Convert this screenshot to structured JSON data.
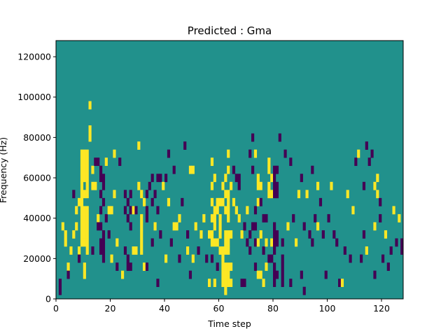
{
  "chart_data": {
    "type": "heatmap",
    "title": "Predicted : Gma",
    "xlabel": "Time step",
    "ylabel": "Frequency (Hz)",
    "xlim": [
      0,
      128
    ],
    "ylim": [
      0,
      128000
    ],
    "x_ticks": [
      0,
      20,
      40,
      60,
      80,
      100,
      120
    ],
    "y_ticks": [
      0,
      20000,
      40000,
      60000,
      80000,
      100000,
      120000
    ],
    "x_tick_labels": [
      "0",
      "20",
      "40",
      "60",
      "80",
      "100",
      "120"
    ],
    "y_tick_labels": [
      "0",
      "20000",
      "40000",
      "60000",
      "80000",
      "100000",
      "120000"
    ],
    "colormap": "viridis",
    "value_levels": [
      -1,
      0,
      1
    ],
    "colors": {
      "-1": "#440154",
      "0": "#21918c",
      "1": "#fde725"
    },
    "background_value": 0,
    "cell_height_hz": 4000,
    "cells": [
      [
        1,
        2000,
        -1
      ],
      [
        1,
        6000,
        -1
      ],
      [
        2,
        34000,
        1
      ],
      [
        3,
        30000,
        1
      ],
      [
        3,
        26000,
        1
      ],
      [
        4,
        14000,
        1
      ],
      [
        4,
        10000,
        -1
      ],
      [
        5,
        22000,
        1
      ],
      [
        6,
        50000,
        -1
      ],
      [
        6,
        30000,
        1
      ],
      [
        7,
        42000,
        1
      ],
      [
        7,
        34000,
        1
      ],
      [
        8,
        46000,
        1
      ],
      [
        8,
        22000,
        1
      ],
      [
        8,
        18000,
        -1
      ],
      [
        9,
        70000,
        1
      ],
      [
        9,
        66000,
        1
      ],
      [
        9,
        62000,
        1
      ],
      [
        9,
        58000,
        1
      ],
      [
        9,
        54000,
        1
      ],
      [
        9,
        50000,
        1
      ],
      [
        9,
        46000,
        1
      ],
      [
        9,
        42000,
        1
      ],
      [
        9,
        38000,
        1
      ],
      [
        9,
        34000,
        1
      ],
      [
        9,
        30000,
        1
      ],
      [
        9,
        26000,
        1
      ],
      [
        10,
        70000,
        1
      ],
      [
        10,
        66000,
        1
      ],
      [
        10,
        62000,
        1
      ],
      [
        10,
        58000,
        1
      ],
      [
        10,
        50000,
        1
      ],
      [
        10,
        42000,
        1
      ],
      [
        10,
        38000,
        1
      ],
      [
        10,
        34000,
        1
      ],
      [
        10,
        30000,
        1
      ],
      [
        10,
        26000,
        1
      ],
      [
        11,
        70000,
        1
      ],
      [
        11,
        66000,
        1
      ],
      [
        11,
        62000,
        1
      ],
      [
        11,
        58000,
        1
      ],
      [
        11,
        54000,
        1
      ],
      [
        11,
        50000,
        1
      ],
      [
        11,
        42000,
        1
      ],
      [
        11,
        38000,
        1
      ],
      [
        11,
        34000,
        1
      ],
      [
        11,
        30000,
        1
      ],
      [
        11,
        26000,
        1
      ],
      [
        11,
        22000,
        1
      ],
      [
        10,
        14000,
        1
      ],
      [
        10,
        10000,
        1
      ],
      [
        12,
        94000,
        1
      ],
      [
        12,
        82000,
        1
      ],
      [
        12,
        78000,
        1
      ],
      [
        13,
        54000,
        1
      ],
      [
        13,
        62000,
        1
      ],
      [
        13,
        22000,
        -1
      ],
      [
        14,
        54000,
        1
      ],
      [
        14,
        66000,
        -1
      ],
      [
        15,
        66000,
        -1
      ],
      [
        15,
        38000,
        1
      ],
      [
        15,
        34000,
        -1
      ],
      [
        16,
        62000,
        -1
      ],
      [
        16,
        58000,
        -1
      ],
      [
        16,
        50000,
        -1
      ],
      [
        16,
        42000,
        -1
      ],
      [
        16,
        34000,
        -1
      ],
      [
        16,
        26000,
        -1
      ],
      [
        16,
        22000,
        -1
      ],
      [
        17,
        58000,
        -1
      ],
      [
        17,
        54000,
        -1
      ],
      [
        17,
        46000,
        -1
      ],
      [
        17,
        30000,
        -1
      ],
      [
        17,
        26000,
        -1
      ],
      [
        17,
        22000,
        -1
      ],
      [
        17,
        18000,
        -1
      ],
      [
        18,
        66000,
        1
      ],
      [
        18,
        38000,
        -1
      ],
      [
        19,
        42000,
        1
      ],
      [
        19,
        30000,
        -1
      ],
      [
        20,
        42000,
        1
      ],
      [
        20,
        18000,
        1
      ],
      [
        21,
        50000,
        1
      ],
      [
        21,
        70000,
        1
      ],
      [
        22,
        26000,
        1
      ],
      [
        22,
        14000,
        -1
      ],
      [
        23,
        66000,
        -1
      ],
      [
        24,
        10000,
        1
      ],
      [
        25,
        50000,
        -1
      ],
      [
        25,
        42000,
        -1
      ],
      [
        25,
        22000,
        -1
      ],
      [
        26,
        46000,
        -1
      ],
      [
        26,
        38000,
        -1
      ],
      [
        26,
        18000,
        -1
      ],
      [
        26,
        14000,
        -1
      ],
      [
        27,
        50000,
        -1
      ],
      [
        27,
        42000,
        -1
      ],
      [
        27,
        34000,
        -1
      ],
      [
        27,
        14000,
        -1
      ],
      [
        28,
        42000,
        1
      ],
      [
        28,
        22000,
        1
      ],
      [
        29,
        42000,
        -1
      ],
      [
        29,
        22000,
        1
      ],
      [
        30,
        74000,
        1
      ],
      [
        30,
        54000,
        1
      ],
      [
        31,
        50000,
        1
      ],
      [
        31,
        38000,
        1
      ],
      [
        31,
        34000,
        1
      ],
      [
        31,
        30000,
        1
      ],
      [
        31,
        26000,
        1
      ],
      [
        31,
        22000,
        1
      ],
      [
        32,
        46000,
        1
      ],
      [
        32,
        14000,
        1
      ],
      [
        33,
        50000,
        -1
      ],
      [
        33,
        42000,
        -1
      ],
      [
        33,
        38000,
        -1
      ],
      [
        33,
        14000,
        -1
      ],
      [
        34,
        54000,
        -1
      ],
      [
        35,
        58000,
        -1
      ],
      [
        35,
        46000,
        -1
      ],
      [
        35,
        26000,
        -1
      ],
      [
        36,
        50000,
        -1
      ],
      [
        36,
        34000,
        1
      ],
      [
        37,
        58000,
        -1
      ],
      [
        37,
        42000,
        -1
      ],
      [
        37,
        6000,
        -1
      ],
      [
        38,
        58000,
        -1
      ],
      [
        38,
        30000,
        -1
      ],
      [
        39,
        54000,
        1
      ],
      [
        40,
        58000,
        -1
      ],
      [
        40,
        18000,
        1
      ],
      [
        41,
        70000,
        -1
      ],
      [
        41,
        46000,
        1
      ],
      [
        42,
        26000,
        -1
      ],
      [
        43,
        62000,
        -1
      ],
      [
        43,
        34000,
        1
      ],
      [
        44,
        34000,
        1
      ],
      [
        45,
        38000,
        1
      ],
      [
        45,
        18000,
        -1
      ],
      [
        46,
        46000,
        -1
      ],
      [
        47,
        74000,
        -1
      ],
      [
        48,
        30000,
        -1
      ],
      [
        48,
        22000,
        1
      ],
      [
        49,
        62000,
        1
      ],
      [
        49,
        10000,
        -1
      ],
      [
        50,
        62000,
        1
      ],
      [
        50,
        18000,
        1
      ],
      [
        51,
        34000,
        1
      ],
      [
        52,
        22000,
        -1
      ],
      [
        53,
        30000,
        1
      ],
      [
        54,
        38000,
        1
      ],
      [
        55,
        18000,
        -1
      ],
      [
        56,
        30000,
        1
      ],
      [
        56,
        6000,
        1
      ],
      [
        57,
        66000,
        1
      ],
      [
        57,
        54000,
        1
      ],
      [
        57,
        46000,
        1
      ],
      [
        57,
        38000,
        1
      ],
      [
        57,
        30000,
        1
      ],
      [
        57,
        26000,
        1
      ],
      [
        57,
        18000,
        -1
      ],
      [
        58,
        58000,
        1
      ],
      [
        58,
        42000,
        1
      ],
      [
        58,
        38000,
        1
      ],
      [
        58,
        34000,
        1
      ],
      [
        58,
        26000,
        1
      ],
      [
        58,
        6000,
        1
      ],
      [
        59,
        46000,
        1
      ],
      [
        59,
        42000,
        1
      ],
      [
        59,
        26000,
        1
      ],
      [
        59,
        14000,
        -1
      ],
      [
        60,
        46000,
        1
      ],
      [
        60,
        38000,
        1
      ],
      [
        60,
        34000,
        1
      ],
      [
        60,
        30000,
        1
      ],
      [
        60,
        22000,
        1
      ],
      [
        61,
        54000,
        1
      ],
      [
        61,
        46000,
        1
      ],
      [
        61,
        22000,
        1
      ],
      [
        61,
        18000,
        1
      ],
      [
        61,
        14000,
        1
      ],
      [
        61,
        10000,
        1
      ],
      [
        61,
        6000,
        1
      ],
      [
        62,
        58000,
        1
      ],
      [
        62,
        50000,
        1
      ],
      [
        62,
        42000,
        1
      ],
      [
        62,
        30000,
        1
      ],
      [
        62,
        26000,
        1
      ],
      [
        62,
        22000,
        1
      ],
      [
        62,
        14000,
        1
      ],
      [
        62,
        10000,
        1
      ],
      [
        62,
        6000,
        1
      ],
      [
        62,
        2000,
        1
      ],
      [
        63,
        70000,
        1
      ],
      [
        63,
        62000,
        1
      ],
      [
        63,
        50000,
        1
      ],
      [
        63,
        46000,
        1
      ],
      [
        63,
        42000,
        1
      ],
      [
        63,
        38000,
        1
      ],
      [
        63,
        30000,
        1
      ],
      [
        63,
        26000,
        1
      ],
      [
        63,
        22000,
        1
      ],
      [
        63,
        14000,
        1
      ],
      [
        63,
        10000,
        1
      ],
      [
        63,
        6000,
        1
      ],
      [
        64,
        54000,
        1
      ],
      [
        64,
        30000,
        1
      ],
      [
        64,
        14000,
        1
      ],
      [
        64,
        6000,
        1
      ],
      [
        65,
        62000,
        -1
      ],
      [
        65,
        46000,
        1
      ],
      [
        66,
        58000,
        -1
      ],
      [
        66,
        42000,
        1
      ],
      [
        67,
        58000,
        -1
      ],
      [
        67,
        54000,
        -1
      ],
      [
        67,
        38000,
        1
      ],
      [
        68,
        30000,
        1
      ],
      [
        68,
        6000,
        -1
      ],
      [
        69,
        34000,
        -1
      ],
      [
        69,
        6000,
        -1
      ],
      [
        70,
        42000,
        1
      ],
      [
        70,
        26000,
        -1
      ],
      [
        71,
        70000,
        -1
      ],
      [
        71,
        30000,
        -1
      ],
      [
        71,
        22000,
        -1
      ],
      [
        72,
        78000,
        -1
      ],
      [
        72,
        62000,
        -1
      ],
      [
        72,
        34000,
        -1
      ],
      [
        73,
        70000,
        1
      ],
      [
        73,
        42000,
        -1
      ],
      [
        73,
        34000,
        -1
      ],
      [
        73,
        26000,
        -1
      ],
      [
        73,
        14000,
        -1
      ],
      [
        74,
        58000,
        1
      ],
      [
        74,
        54000,
        1
      ],
      [
        74,
        46000,
        1
      ],
      [
        74,
        26000,
        1
      ],
      [
        74,
        10000,
        1
      ],
      [
        75,
        54000,
        1
      ],
      [
        75,
        46000,
        -1
      ],
      [
        75,
        30000,
        1
      ],
      [
        75,
        10000,
        1
      ],
      [
        76,
        38000,
        -1
      ],
      [
        76,
        22000,
        -1
      ],
      [
        76,
        6000,
        1
      ],
      [
        77,
        38000,
        -1
      ],
      [
        77,
        26000,
        1
      ],
      [
        77,
        14000,
        1
      ],
      [
        78,
        66000,
        1
      ],
      [
        78,
        62000,
        1
      ],
      [
        78,
        54000,
        1
      ],
      [
        78,
        50000,
        1
      ],
      [
        78,
        18000,
        -1
      ],
      [
        79,
        58000,
        1
      ],
      [
        79,
        50000,
        1
      ],
      [
        79,
        26000,
        1
      ],
      [
        79,
        18000,
        -1
      ],
      [
        80,
        62000,
        -1
      ],
      [
        80,
        58000,
        -1
      ],
      [
        80,
        54000,
        -1
      ],
      [
        80,
        50000,
        -1
      ],
      [
        80,
        34000,
        -1
      ],
      [
        80,
        30000,
        -1
      ],
      [
        80,
        26000,
        -1
      ],
      [
        80,
        22000,
        -1
      ],
      [
        80,
        14000,
        -1
      ],
      [
        80,
        10000,
        -1
      ],
      [
        80,
        6000,
        -1
      ],
      [
        81,
        62000,
        -1
      ],
      [
        81,
        54000,
        -1
      ],
      [
        81,
        50000,
        -1
      ],
      [
        81,
        30000,
        -1
      ],
      [
        81,
        26000,
        -1
      ],
      [
        81,
        10000,
        -1
      ],
      [
        82,
        78000,
        -1
      ],
      [
        83,
        26000,
        -1
      ],
      [
        83,
        18000,
        -1
      ],
      [
        83,
        14000,
        -1
      ],
      [
        83,
        10000,
        -1
      ],
      [
        83,
        6000,
        -1
      ],
      [
        84,
        70000,
        -1
      ],
      [
        85,
        34000,
        1
      ],
      [
        86,
        6000,
        -1
      ],
      [
        86,
        66000,
        -1
      ],
      [
        87,
        38000,
        -1
      ],
      [
        88,
        26000,
        1
      ],
      [
        89,
        50000,
        1
      ],
      [
        90,
        58000,
        -1
      ],
      [
        90,
        10000,
        -1
      ],
      [
        91,
        34000,
        -1
      ],
      [
        91,
        2000,
        -1
      ],
      [
        92,
        50000,
        1
      ],
      [
        93,
        30000,
        -1
      ],
      [
        94,
        26000,
        -1
      ],
      [
        94,
        62000,
        -1
      ],
      [
        95,
        38000,
        -1
      ],
      [
        96,
        34000,
        1
      ],
      [
        96,
        54000,
        1
      ],
      [
        97,
        46000,
        -1
      ],
      [
        98,
        30000,
        -1
      ],
      [
        99,
        10000,
        -1
      ],
      [
        100,
        38000,
        -1
      ],
      [
        101,
        54000,
        1
      ],
      [
        102,
        30000,
        -1
      ],
      [
        103,
        26000,
        -1
      ],
      [
        104,
        6000,
        -1
      ],
      [
        105,
        6000,
        1
      ],
      [
        106,
        22000,
        -1
      ],
      [
        107,
        50000,
        1
      ],
      [
        108,
        18000,
        -1
      ],
      [
        109,
        42000,
        1
      ],
      [
        110,
        66000,
        -1
      ],
      [
        111,
        70000,
        1
      ],
      [
        112,
        18000,
        -1
      ],
      [
        113,
        54000,
        -1
      ],
      [
        113,
        30000,
        -1
      ],
      [
        114,
        74000,
        -1
      ],
      [
        114,
        22000,
        1
      ],
      [
        115,
        66000,
        -1
      ],
      [
        116,
        70000,
        -1
      ],
      [
        117,
        54000,
        1
      ],
      [
        117,
        10000,
        -1
      ],
      [
        117,
        34000,
        1
      ],
      [
        118,
        50000,
        1
      ],
      [
        118,
        58000,
        1
      ],
      [
        119,
        38000,
        -1
      ],
      [
        119,
        46000,
        -1
      ],
      [
        120,
        18000,
        -1
      ],
      [
        121,
        30000,
        1
      ],
      [
        122,
        14000,
        -1
      ],
      [
        123,
        22000,
        -1
      ],
      [
        124,
        42000,
        1
      ],
      [
        125,
        26000,
        -1
      ],
      [
        126,
        38000,
        1
      ],
      [
        127,
        26000,
        -1
      ],
      [
        127,
        22000,
        -1
      ]
    ]
  }
}
